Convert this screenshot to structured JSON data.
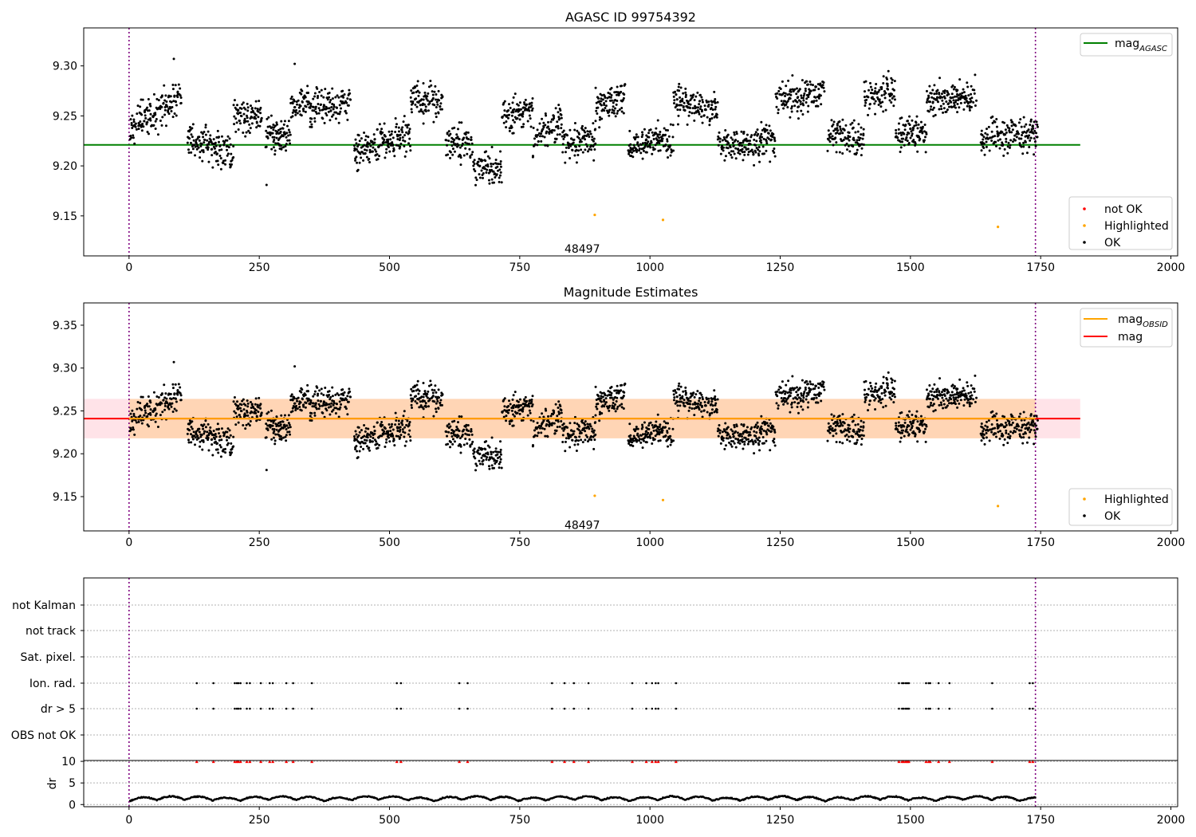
{
  "chart_data": [
    {
      "type": "scatter",
      "title": "AGASC ID 99754392",
      "xlim": [
        -87,
        2013
      ],
      "ylim": [
        9.11,
        9.338
      ],
      "xticks": [
        0,
        250,
        500,
        750,
        1000,
        1250,
        1500,
        1750,
        2000
      ],
      "yticks": [
        9.15,
        9.2,
        9.25,
        9.3
      ],
      "obs_boundaries": [
        0,
        1740
      ],
      "obs_label": {
        "text": "48497",
        "x": 870,
        "y": 9.117
      },
      "hlines": [
        {
          "name": "mag_AGASC",
          "y": 9.221,
          "x_range": [
            -87,
            1826
          ],
          "color": "#008000"
        }
      ],
      "highlighted_points": [
        [
          894,
          9.151
        ],
        [
          1025,
          9.146
        ],
        [
          1668,
          9.139
        ]
      ],
      "legend_lines": [
        {
          "main": "mag",
          "sub": "AGASC",
          "color": "#008000"
        }
      ],
      "legend_markers": [
        {
          "label": "not OK",
          "color": "#ff0000"
        },
        {
          "label": "Highlighted",
          "color": "#ffa500"
        },
        {
          "label": "OK",
          "color": "#000000"
        }
      ],
      "colors": {
        "ok": "#000000",
        "highlighted": "#ffa500",
        "not_ok": "#ff0000",
        "obs_boundary": "#800080"
      }
    },
    {
      "type": "scatter",
      "title": "Magnitude Estimates",
      "xlim": [
        -87,
        2013
      ],
      "ylim": [
        9.11,
        9.376
      ],
      "xticks": [
        0,
        250,
        500,
        750,
        1000,
        1250,
        1500,
        1750,
        2000
      ],
      "yticks": [
        9.15,
        9.2,
        9.25,
        9.3,
        9.35
      ],
      "obs_boundaries": [
        0,
        1740
      ],
      "obs_label": {
        "text": "48497",
        "x": 870,
        "y": 9.117
      },
      "hlines": [
        {
          "name": "mag",
          "y": 9.241,
          "x_range": [
            -87,
            1826
          ],
          "color": "#ff0000"
        },
        {
          "name": "mag_OBSID",
          "y": 9.241,
          "x_range": [
            0,
            1740
          ],
          "color": "#ffa500"
        }
      ],
      "bands": [
        {
          "name": "mag range",
          "y_range": [
            9.218,
            9.264
          ],
          "x_range": [
            -87,
            1826
          ],
          "color": "#ffc0cb"
        },
        {
          "name": "mag_OBSID range",
          "y_range": [
            9.218,
            9.264
          ],
          "x_range": [
            0,
            1740
          ],
          "color": "#ffa500"
        }
      ],
      "highlighted_points": [
        [
          894,
          9.151
        ],
        [
          1025,
          9.146
        ],
        [
          1668,
          9.139
        ]
      ],
      "legend_lines": [
        {
          "main": "mag",
          "sub": "OBSID",
          "color": "#ffa500"
        },
        {
          "main": "mag",
          "sub": "",
          "color": "#ff0000"
        }
      ],
      "legend_markers": [
        {
          "label": "Highlighted",
          "color": "#ffa500"
        },
        {
          "label": "OK",
          "color": "#000000"
        }
      ],
      "colors": {
        "ok": "#000000",
        "highlighted": "#ffa500",
        "obs_boundary": "#800080"
      }
    },
    {
      "type": "scatter",
      "title": "",
      "xlim": [
        -87,
        2013
      ],
      "categories": [
        "not Kalman",
        "not track",
        "Sat. pixel.",
        "Ion. rad.",
        "dr > 5",
        "OBS not OK"
      ],
      "flag_x": [
        130,
        162,
        203,
        207,
        210,
        214,
        226,
        232,
        253,
        270,
        276,
        302,
        315,
        351,
        514,
        522,
        634,
        650,
        812,
        836,
        854,
        882,
        966,
        993,
        1004,
        1011,
        1016,
        1050,
        1478,
        1484,
        1487,
        1491,
        1494,
        1497,
        1530,
        1535,
        1538,
        1554,
        1575,
        1657,
        1729,
        1735
      ],
      "colors": {
        "flag": "#000000",
        "obs_boundary": "#800080",
        "grid": "#b0b0b0"
      }
    },
    {
      "type": "scatter",
      "title": "",
      "ylabel": "dr",
      "xlim": [
        -87,
        2013
      ],
      "ylim": [
        -0.5,
        10.2
      ],
      "xticks": [
        0,
        250,
        500,
        750,
        1000,
        1250,
        1500,
        1750,
        2000
      ],
      "yticks": [
        0,
        5,
        10
      ],
      "clipped_marker_y": 10,
      "colors": {
        "point": "#000000",
        "clipped": "#ff0000",
        "obs_boundary": "#800080"
      }
    }
  ]
}
